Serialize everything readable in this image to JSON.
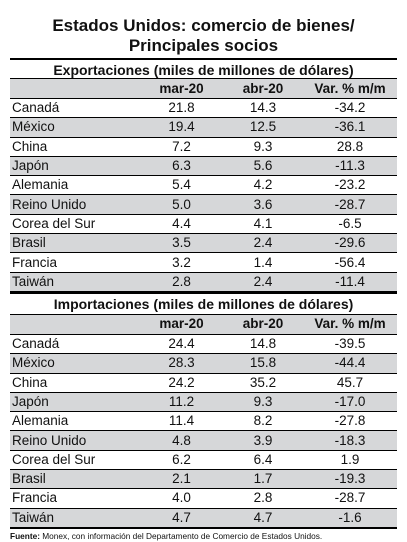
{
  "title_line1": "Estados Unidos: comercio de bienes/",
  "title_line2": "Principales socios",
  "columns": [
    "",
    "mar-20",
    "abr-20",
    "Var. % m/m"
  ],
  "exports": {
    "title": "Exportaciones (miles de millones de dólares)",
    "rows": [
      {
        "country": "Canadá",
        "mar": "21.8",
        "abr": "14.3",
        "var": "-34.2"
      },
      {
        "country": "México",
        "mar": "19.4",
        "abr": "12.5",
        "var": "-36.1"
      },
      {
        "country": "China",
        "mar": "7.2",
        "abr": "9.3",
        "var": "28.8"
      },
      {
        "country": "Japón",
        "mar": "6.3",
        "abr": "5.6",
        "var": "-11.3"
      },
      {
        "country": "Alemania",
        "mar": "5.4",
        "abr": "4.2",
        "var": "-23.2"
      },
      {
        "country": "Reino Unido",
        "mar": "5.0",
        "abr": "3.6",
        "var": "-28.7"
      },
      {
        "country": "Corea del Sur",
        "mar": "4.4",
        "abr": "4.1",
        "var": "-6.5"
      },
      {
        "country": "Brasil",
        "mar": "3.5",
        "abr": "2.4",
        "var": "-29.6"
      },
      {
        "country": "Francia",
        "mar": "3.2",
        "abr": "1.4",
        "var": "-56.4"
      },
      {
        "country": "Taiwán",
        "mar": "2.8",
        "abr": "2.4",
        "var": "-11.4"
      }
    ]
  },
  "imports": {
    "title": "Importaciones (miles de millones de dólares)",
    "rows": [
      {
        "country": "Canadá",
        "mar": "24.4",
        "abr": "14.8",
        "var": "-39.5"
      },
      {
        "country": "México",
        "mar": "28.3",
        "abr": "15.8",
        "var": "-44.4"
      },
      {
        "country": "China",
        "mar": "24.2",
        "abr": "35.2",
        "var": "45.7"
      },
      {
        "country": "Japón",
        "mar": "11.2",
        "abr": "9.3",
        "var": "-17.0"
      },
      {
        "country": "Alemania",
        "mar": "11.4",
        "abr": "8.2",
        "var": "-27.8"
      },
      {
        "country": "Reino Unido",
        "mar": "4.8",
        "abr": "3.9",
        "var": "-18.3"
      },
      {
        "country": "Corea del Sur",
        "mar": "6.2",
        "abr": "6.4",
        "var": "1.9"
      },
      {
        "country": "Brasil",
        "mar": "2.1",
        "abr": "1.7",
        "var": "-19.3"
      },
      {
        "country": "Francia",
        "mar": "4.0",
        "abr": "2.8",
        "var": "-28.7"
      },
      {
        "country": "Taiwán",
        "mar": "4.7",
        "abr": "4.7",
        "var": "-1.6"
      }
    ]
  },
  "footer": {
    "label": "Fuente:",
    "text": " Monex, con información del Departamento de Comercio de Estados Unidos."
  }
}
